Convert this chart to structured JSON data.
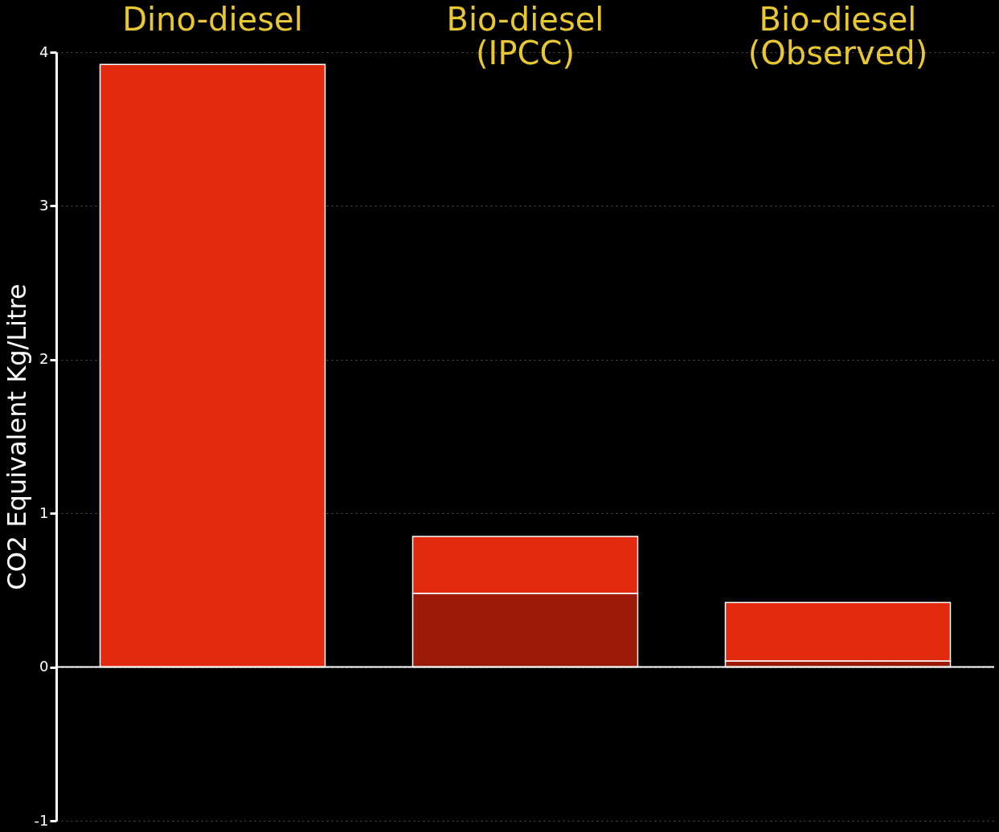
{
  "chart_data": {
    "type": "bar",
    "stacked": true,
    "categories": [
      "Dino-diesel",
      "Bio-diesel (IPCC)",
      "Bio-diesel (Observed)"
    ],
    "series": [
      {
        "color": "#9c1a08",
        "values": [
          null,
          0.48,
          0.04
        ]
      },
      {
        "color": "#e22a0e",
        "values": [
          3.92,
          0.37,
          0.38
        ]
      }
    ],
    "ylabel": "CO2 Equivalent Kg/Litre",
    "ylim": [
      -1,
      4
    ],
    "yticks": [
      -1,
      0,
      1,
      2,
      3,
      4
    ],
    "grid": "y",
    "ref_lines": [
      {
        "axis": "y",
        "value": 0,
        "color": "#ffffff"
      }
    ]
  }
}
